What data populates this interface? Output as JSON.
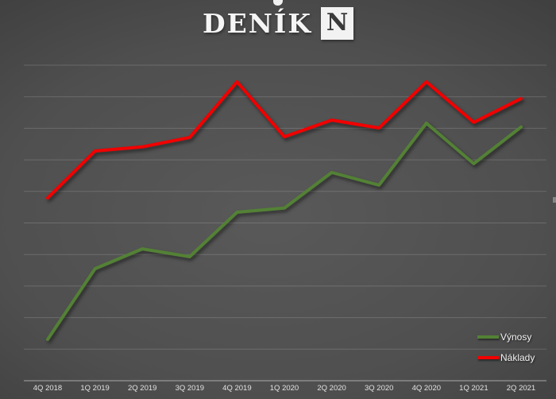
{
  "logo": {
    "text": "DENÍK",
    "box_letter": "N"
  },
  "chart_data": {
    "type": "line",
    "title": "",
    "xlabel": "",
    "ylabel": "",
    "y_axis_labels_visible": false,
    "ylim": [
      0,
      100
    ],
    "grid": "horizontal",
    "legend_position": "bottom-right",
    "categories": [
      "4Q 2018",
      "1Q 2019",
      "2Q 2019",
      "3Q 2019",
      "4Q 2019",
      "1Q 2020",
      "2Q 2020",
      "3Q 2020",
      "4Q 2020",
      "1Q 2021",
      "2Q 2021"
    ],
    "series": [
      {
        "name": "Výnosy",
        "color": "#538135",
        "values": [
          13.1,
          35.5,
          41.8,
          39.3,
          53.4,
          54.7,
          66.0,
          62.0,
          81.6,
          68.8,
          80.4
        ]
      },
      {
        "name": "Náklady",
        "color": "#f10000",
        "values": [
          57.9,
          72.8,
          74.1,
          77.1,
          94.7,
          77.3,
          82.6,
          80.1,
          94.7,
          81.9,
          89.4
        ]
      }
    ]
  },
  "colors": {
    "background_center": "#585858",
    "background_edge": "#272727",
    "gridline": "rgba(255,255,255,0.16)",
    "axis_line": "rgba(255,255,255,0.42)",
    "axis_label": "#e2e2e2",
    "legend_label": "#f2f2f2",
    "logo_text": "#f5f5f5",
    "logo_box_bg": "#f2f2f2",
    "logo_box_letter": "#3a3a3a"
  }
}
